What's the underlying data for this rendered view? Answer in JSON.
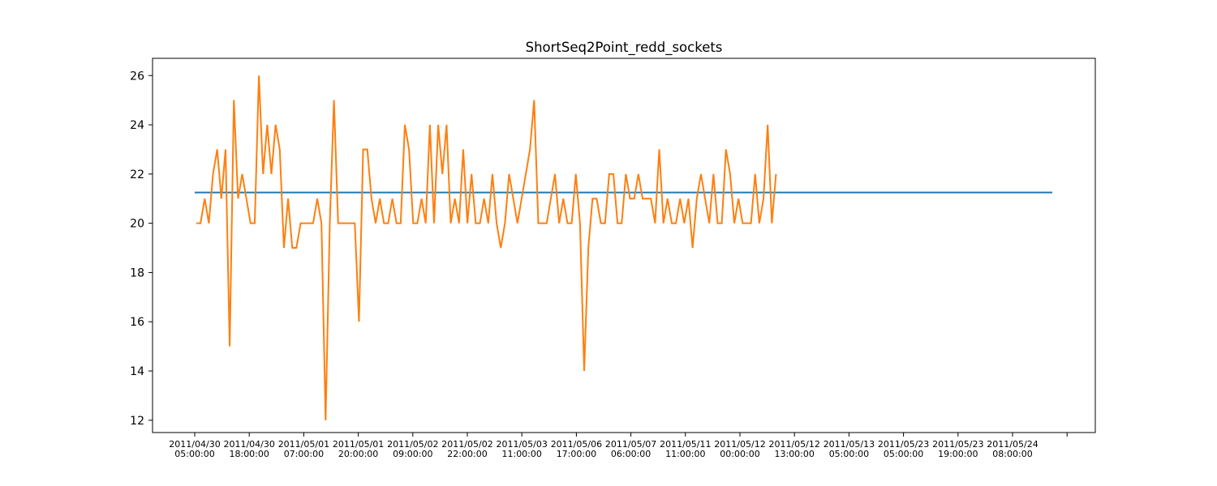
{
  "chart_data": {
    "type": "line",
    "title": "ShortSeq2Point_redd_sockets",
    "xlabel": "",
    "ylabel": "",
    "ylim": [
      11.5,
      26.7
    ],
    "y_ticks": [
      12,
      14,
      16,
      18,
      20,
      22,
      24,
      26
    ],
    "x_tick_labels": [
      [
        "2011/04/30",
        "05:00:00"
      ],
      [
        "2011/04/30",
        "18:00:00"
      ],
      [
        "2011/05/01",
        "07:00:00"
      ],
      [
        "2011/05/01",
        "20:00:00"
      ],
      [
        "2011/05/02",
        "09:00:00"
      ],
      [
        "2011/05/02",
        "22:00:00"
      ],
      [
        "2011/05/03",
        "11:00:00"
      ],
      [
        "2011/05/06",
        "17:00:00"
      ],
      [
        "2011/05/07",
        "06:00:00"
      ],
      [
        "2011/05/11",
        "11:00:00"
      ],
      [
        "2011/05/12",
        "00:00:00"
      ],
      [
        "2011/05/12",
        "13:00:00"
      ],
      [
        "2011/05/13",
        "05:00:00"
      ],
      [
        "2011/05/23",
        "05:00:00"
      ],
      [
        "2011/05/23",
        "19:00:00"
      ],
      [
        "2011/05/24",
        "08:00:00"
      ],
      [
        "",
        ""
      ]
    ],
    "grid": false,
    "legend": "none",
    "series": [
      {
        "color": "#1f77b4",
        "values_start": 0,
        "values": [
          21.25,
          21.25
        ]
      },
      {
        "color": "#ff7f0e",
        "values_start": 0,
        "values": [
          20,
          20,
          21,
          20,
          22,
          23,
          21,
          23,
          15,
          25,
          21,
          22,
          21,
          20,
          20,
          26,
          22,
          24,
          22,
          24,
          23,
          19,
          21,
          19,
          19,
          20,
          20,
          20,
          20,
          21,
          20,
          12,
          20,
          25,
          20,
          20,
          20,
          20,
          20,
          16,
          23,
          23,
          21,
          20,
          21,
          20,
          20,
          21,
          20,
          20,
          24,
          23,
          20,
          20,
          21,
          20,
          24,
          20,
          24,
          22,
          24,
          20,
          21,
          20,
          23,
          20,
          22,
          20,
          20,
          21,
          20,
          22,
          20,
          19,
          20,
          22,
          21,
          20,
          21,
          22,
          23,
          25,
          20,
          20,
          20,
          21,
          22,
          20,
          21,
          20,
          20,
          22,
          20,
          14,
          19,
          21,
          21,
          20,
          20,
          22,
          22,
          20,
          20,
          22,
          21,
          21,
          22,
          21,
          21,
          21,
          20,
          23,
          20,
          21,
          20,
          20,
          21,
          20,
          21,
          19,
          21,
          22,
          21,
          20,
          22,
          20,
          20,
          23,
          22,
          20,
          21,
          20,
          20,
          20,
          22,
          20,
          21,
          24,
          20,
          22
        ]
      }
    ]
  }
}
